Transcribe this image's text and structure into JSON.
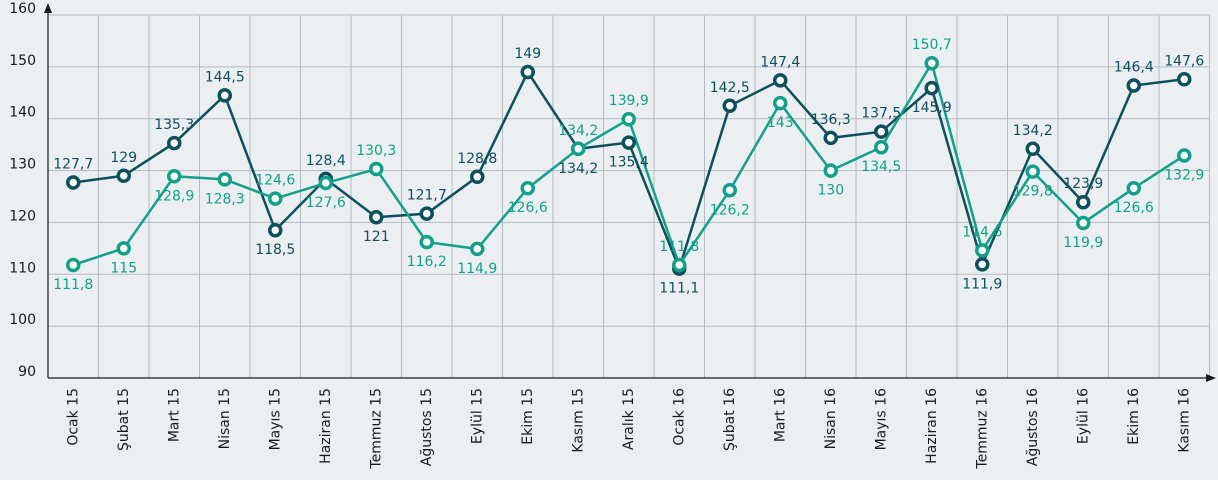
{
  "chart_data": {
    "type": "line",
    "categories": [
      "Ocak 15",
      "Şubat 15",
      "Mart 15",
      "Nisan 15",
      "Mayıs 15",
      "Haziran 15",
      "Temmuz 15",
      "Ağustos 15",
      "Eylül 15",
      "Ekim 15",
      "Kasım 15",
      "Aralık 15",
      "Ocak 16",
      "Şubat 16",
      "Mart 16",
      "Nisan 16",
      "Mayıs 16",
      "Haziran 16",
      "Temmuz 16",
      "Ağustos 16",
      "Eylül 16",
      "Ekim 16",
      "Kasım 16"
    ],
    "series": [
      {
        "color": "#0e4f5e",
        "values": [
          127.7,
          129,
          135.3,
          144.5,
          118.5,
          128.4,
          121,
          121.7,
          128.8,
          149,
          134.2,
          135.4,
          111.1,
          142.5,
          147.4,
          136.3,
          137.5,
          145.9,
          111.9,
          134.2,
          123.9,
          146.4,
          147.6
        ],
        "value_labels": [
          "127,7",
          "129",
          "135,3",
          "144,5",
          "118,5",
          "128,4",
          "121",
          "121,7",
          "128,8",
          "149",
          "134,2",
          "135,4",
          "111,1",
          "142,5",
          "147,4",
          "136,3",
          "137,5",
          "145,9",
          "111,9",
          "134,2",
          "123,9",
          "146,4",
          "147,6"
        ]
      },
      {
        "color": "#13a08a",
        "values": [
          111.8,
          115,
          128.9,
          128.3,
          124.6,
          127.6,
          130.3,
          116.2,
          114.9,
          126.6,
          134.2,
          139.9,
          111.8,
          126.2,
          143,
          130,
          134.5,
          150.7,
          114.6,
          129.8,
          119.9,
          126.6,
          132.9
        ],
        "value_labels": [
          "111,8",
          "115",
          "128,9",
          "128,3",
          "124,6",
          "127,6",
          "130,3",
          "116,2",
          "114,9",
          "126,6",
          "134,2",
          "139,9",
          "111,8",
          "126,2",
          "143",
          "130",
          "134,5",
          "150,7",
          "114,6",
          "129,8",
          "119,9",
          "126,6",
          "132,9"
        ]
      }
    ],
    "ylim": [
      90,
      160
    ],
    "yticks": [
      90,
      100,
      110,
      120,
      130,
      140,
      150,
      160
    ],
    "grid": true
  }
}
